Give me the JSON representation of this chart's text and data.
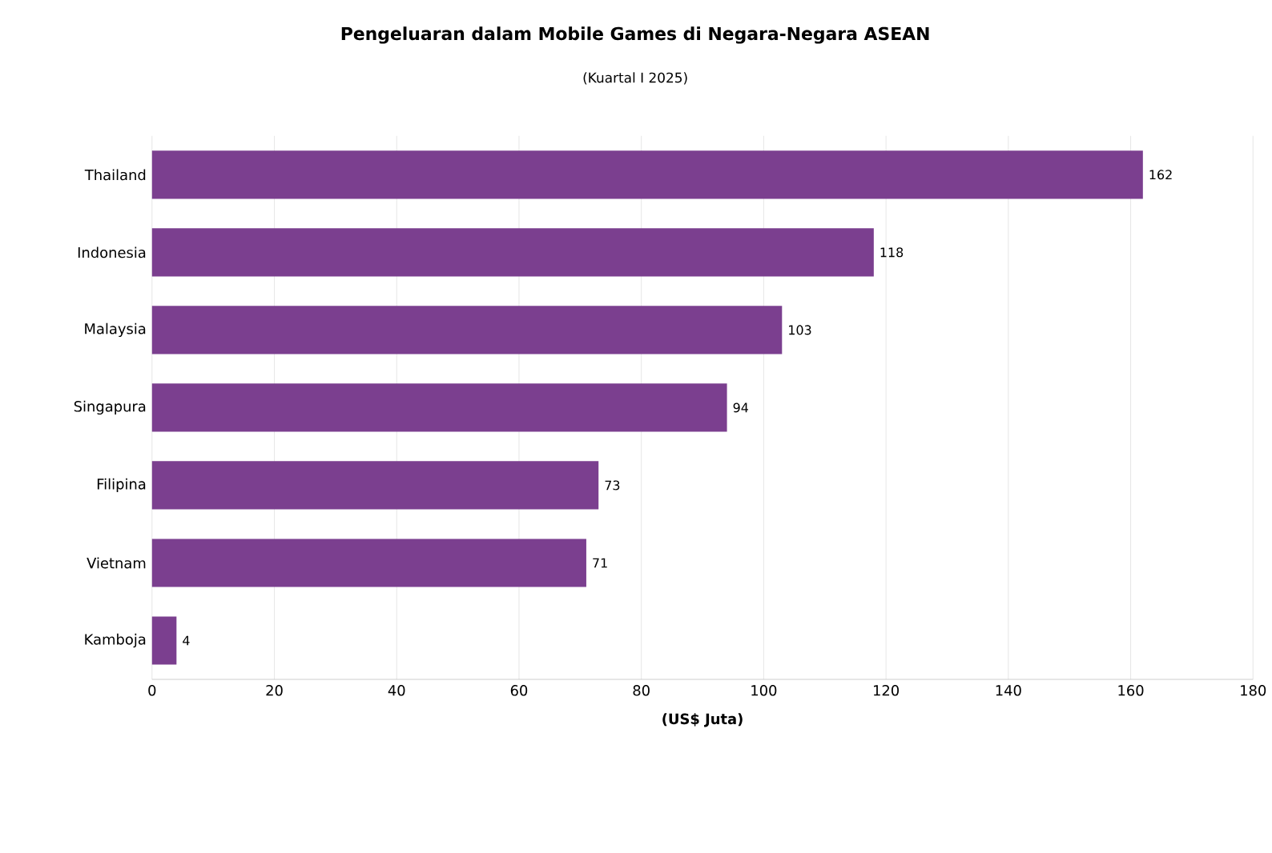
{
  "chart_data": {
    "type": "bar",
    "orientation": "horizontal",
    "title": "Pengeluaran dalam Mobile Games di Negara-Negara ASEAN",
    "subtitle": "(Kuartal I 2025)",
    "xlabel": "(US$ Juta)",
    "categories": [
      "Thailand",
      "Indonesia",
      "Malaysia",
      "Singapura",
      "Filipina",
      "Vietnam",
      "Kamboja"
    ],
    "values": [
      162,
      118,
      103,
      94,
      73,
      71,
      4
    ],
    "color": "#7b3f8f",
    "xlim": [
      0,
      180
    ],
    "xticks": [
      0,
      20,
      40,
      60,
      80,
      100,
      120,
      140,
      160,
      180
    ],
    "grid": "x",
    "data_labels": true
  }
}
